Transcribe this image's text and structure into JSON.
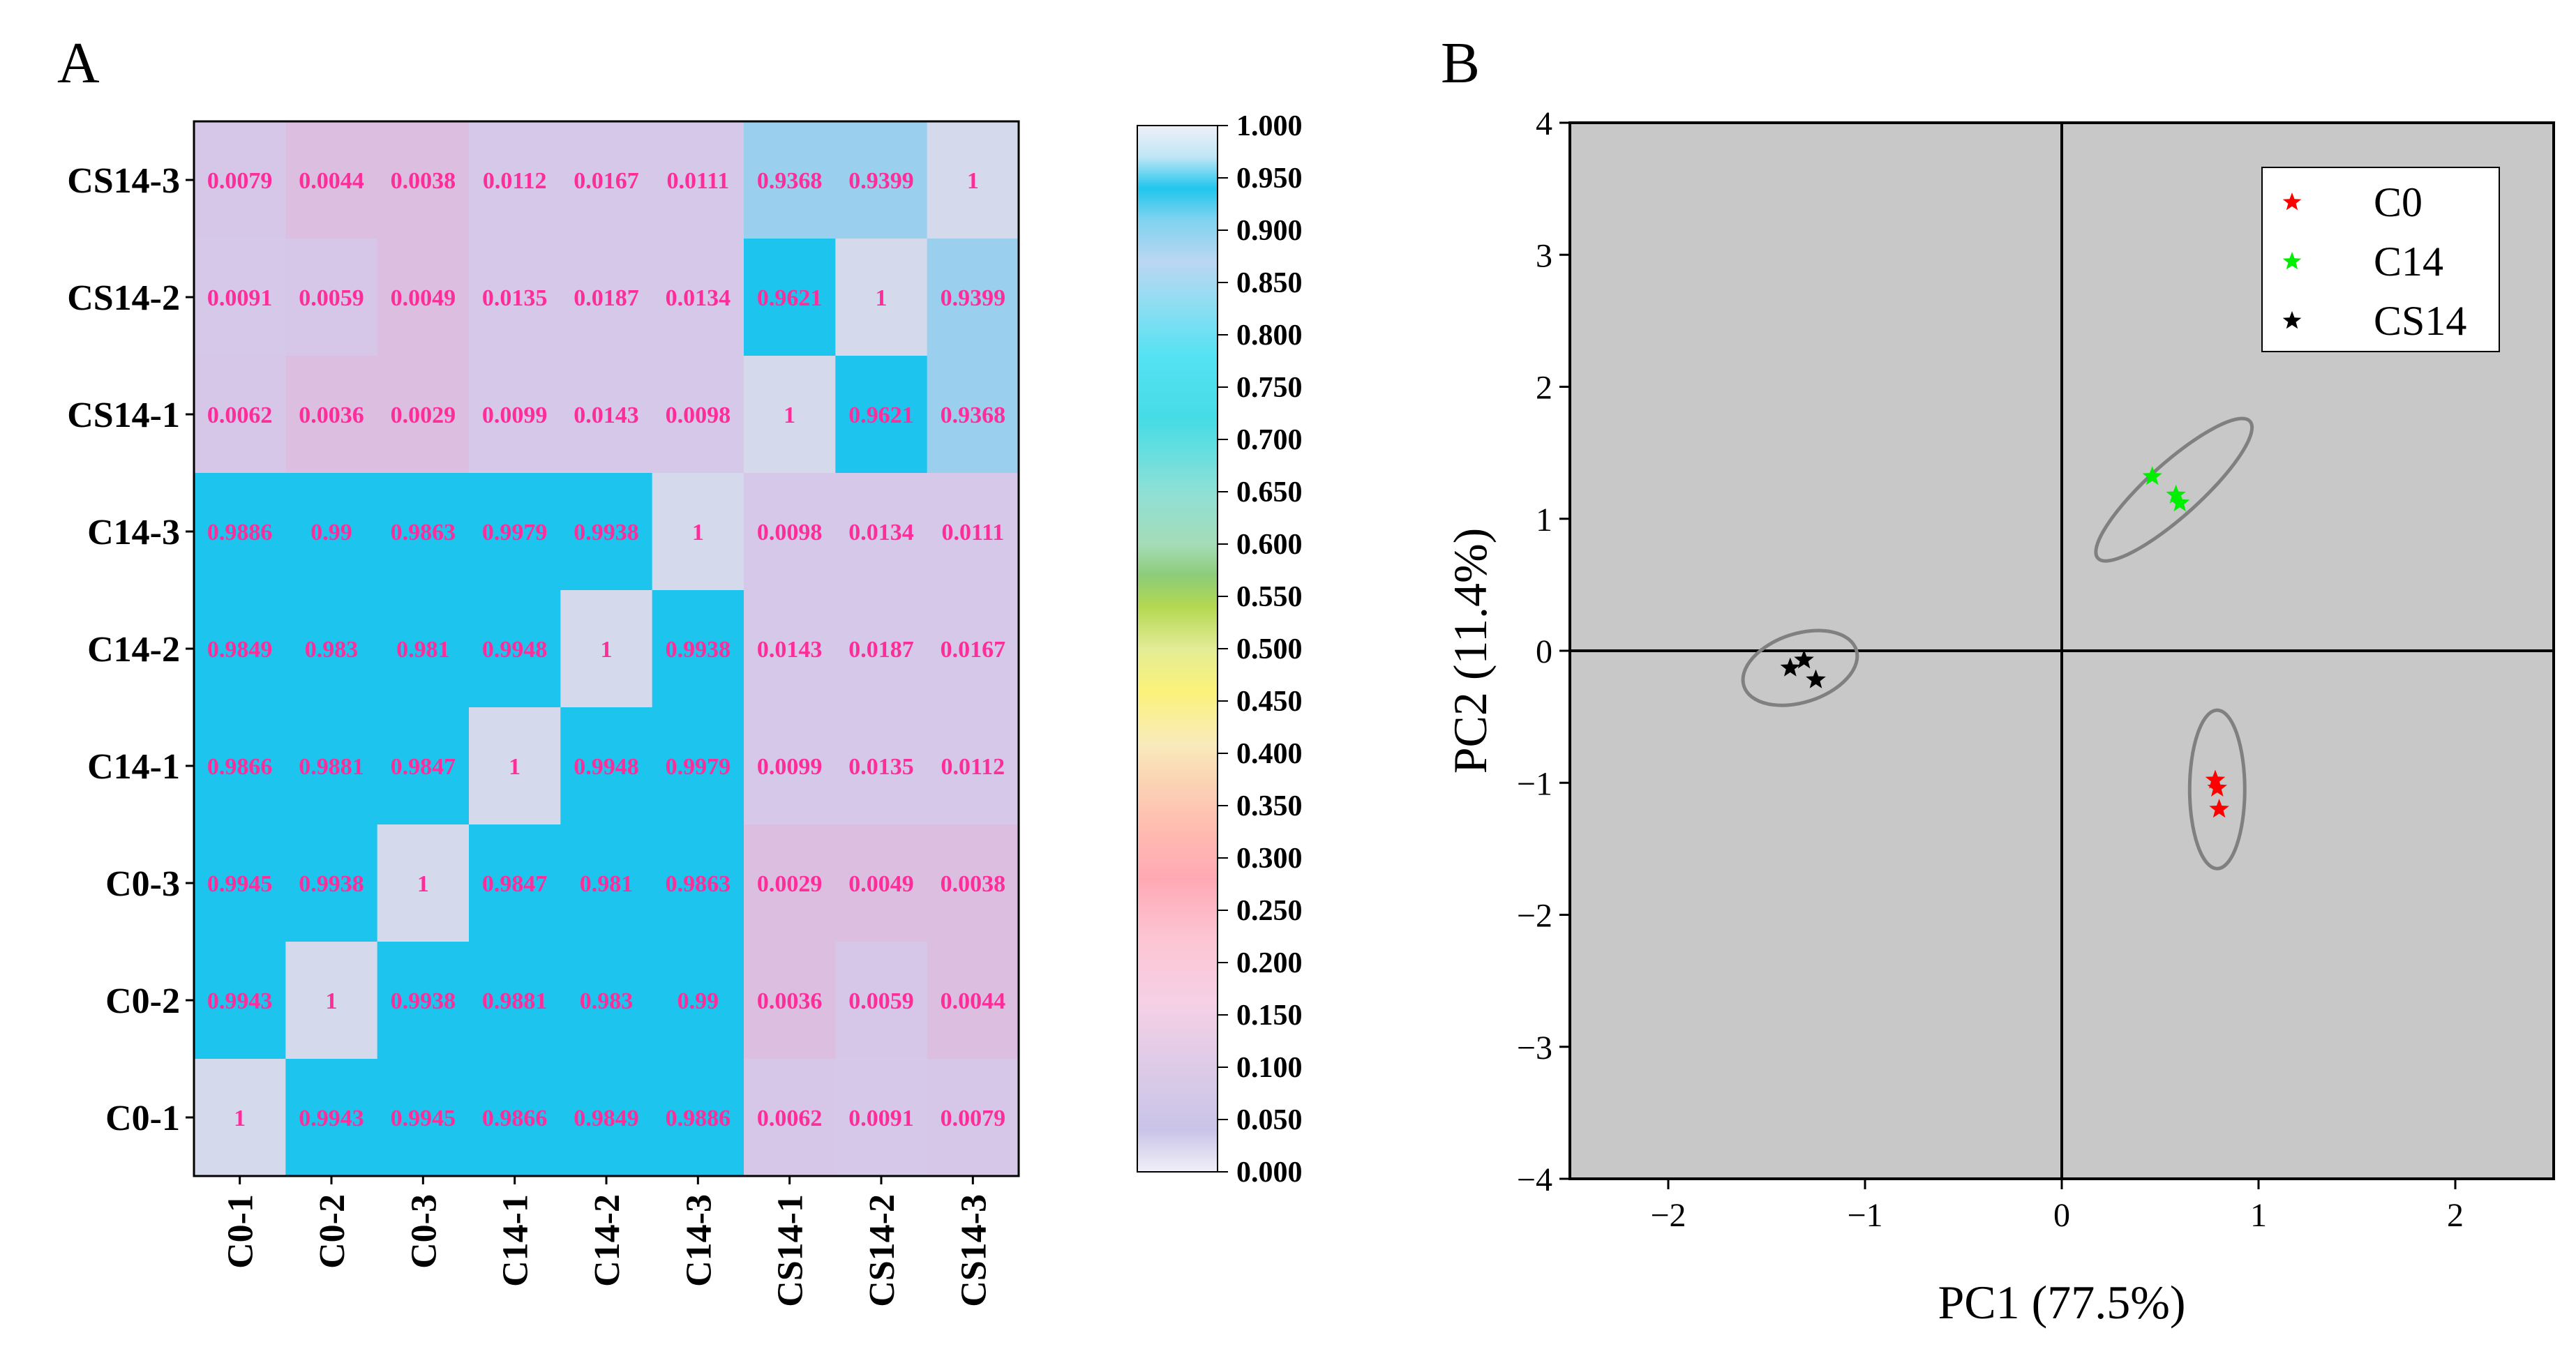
{
  "panel_labels": {
    "a": "A",
    "b": "B"
  },
  "colors": {
    "cell_text": "#ff2d9a",
    "pca_background": "#c8c8c8",
    "ellipse": "#808080",
    "C0": "#ff0000",
    "C14": "#00ee00",
    "CS14": "#000000"
  },
  "chart_data": [
    {
      "type": "heatmap",
      "title": "",
      "samples": [
        "C0-1",
        "C0-2",
        "C0-3",
        "C14-1",
        "C14-2",
        "C14-3",
        "CS14-1",
        "CS14-2",
        "CS14-3"
      ],
      "row_order_top_to_bottom": [
        "CS14-3",
        "CS14-2",
        "CS14-1",
        "C14-3",
        "C14-2",
        "C14-1",
        "C0-3",
        "C0-2",
        "C0-1"
      ],
      "values": [
        [
          "0.0079",
          "0.0044",
          "0.0038",
          "0.0112",
          "0.0167",
          "0.0111",
          "0.9368",
          "0.9399",
          "1"
        ],
        [
          "0.0091",
          "0.0059",
          "0.0049",
          "0.0135",
          "0.0187",
          "0.0134",
          "0.9621",
          "1",
          "0.9399"
        ],
        [
          "0.0062",
          "0.0036",
          "0.0029",
          "0.0099",
          "0.0143",
          "0.0098",
          "1",
          "0.9621",
          "0.9368"
        ],
        [
          "0.9886",
          "0.99",
          "0.9863",
          "0.9979",
          "0.9938",
          "1",
          "0.0098",
          "0.0134",
          "0.0111"
        ],
        [
          "0.9849",
          "0.983",
          "0.981",
          "0.9948",
          "1",
          "0.9938",
          "0.0143",
          "0.0187",
          "0.0167"
        ],
        [
          "0.9866",
          "0.9881",
          "0.9847",
          "1",
          "0.9948",
          "0.9979",
          "0.0099",
          "0.0135",
          "0.0112"
        ],
        [
          "0.9945",
          "0.9938",
          "1",
          "0.9847",
          "0.981",
          "0.9863",
          "0.0029",
          "0.0049",
          "0.0038"
        ],
        [
          "0.9943",
          "1",
          "0.9938",
          "0.9881",
          "0.983",
          "0.99",
          "0.0036",
          "0.0059",
          "0.0044"
        ],
        [
          "1",
          "0.9943",
          "0.9945",
          "0.9866",
          "0.9849",
          "0.9886",
          "0.0062",
          "0.0091",
          "0.0079"
        ]
      ],
      "colorbar": {
        "range": [
          0,
          1
        ],
        "ticks": [
          "1.000",
          "0.950",
          "0.900",
          "0.850",
          "0.800",
          "0.750",
          "0.700",
          "0.650",
          "0.600",
          "0.550",
          "0.500",
          "0.450",
          "0.400",
          "0.350",
          "0.300",
          "0.250",
          "0.200",
          "0.150",
          "0.100",
          "0.050",
          "0.000"
        ]
      }
    },
    {
      "type": "scatter",
      "title": "",
      "xlabel": "PC1 (77.5%)",
      "ylabel": "PC2 (11.4%)",
      "xlim": [
        -2.5,
        2.5
      ],
      "ylim": [
        -4,
        4
      ],
      "xticks": [
        {
          "value": -2,
          "label": "−2"
        },
        {
          "value": -1,
          "label": "−1"
        },
        {
          "value": 0,
          "label": "0"
        },
        {
          "value": 1,
          "label": "1"
        },
        {
          "value": 2,
          "label": "2"
        }
      ],
      "yticks": [
        {
          "value": 4,
          "label": "4"
        },
        {
          "value": 3,
          "label": "3"
        },
        {
          "value": 2,
          "label": "2"
        },
        {
          "value": 1,
          "label": "1"
        },
        {
          "value": 0,
          "label": "0"
        },
        {
          "value": -1,
          "label": "−1"
        },
        {
          "value": -2,
          "label": "−2"
        },
        {
          "value": -3,
          "label": "−3"
        },
        {
          "value": -4,
          "label": "−4"
        }
      ],
      "legend_position": "top-right",
      "series": [
        {
          "name": "C0",
          "color": "#ff0000",
          "points": [
            [
              0.78,
              -0.98
            ],
            [
              0.79,
              -1.04
            ],
            [
              0.8,
              -1.2
            ]
          ],
          "ellipse": {
            "cx": 0.79,
            "cy": -1.05,
            "rx": 0.14,
            "ry": 0.6,
            "angle_deg": 0
          }
        },
        {
          "name": "C14",
          "color": "#00ee00",
          "points": [
            [
              0.46,
              1.32
            ],
            [
              0.58,
              1.18
            ],
            [
              0.6,
              1.12
            ]
          ],
          "ellipse": {
            "cx": 0.57,
            "cy": 1.22,
            "rx": 0.52,
            "ry": 0.2,
            "angle_deg": -42
          }
        },
        {
          "name": "CS14",
          "color": "#000000",
          "points": [
            [
              -1.38,
              -0.13
            ],
            [
              -1.31,
              -0.07
            ],
            [
              -1.25,
              -0.22
            ]
          ],
          "ellipse": {
            "cx": -1.33,
            "cy": -0.13,
            "rx": 0.3,
            "ry": 0.26,
            "angle_deg": -18
          }
        }
      ]
    }
  ]
}
